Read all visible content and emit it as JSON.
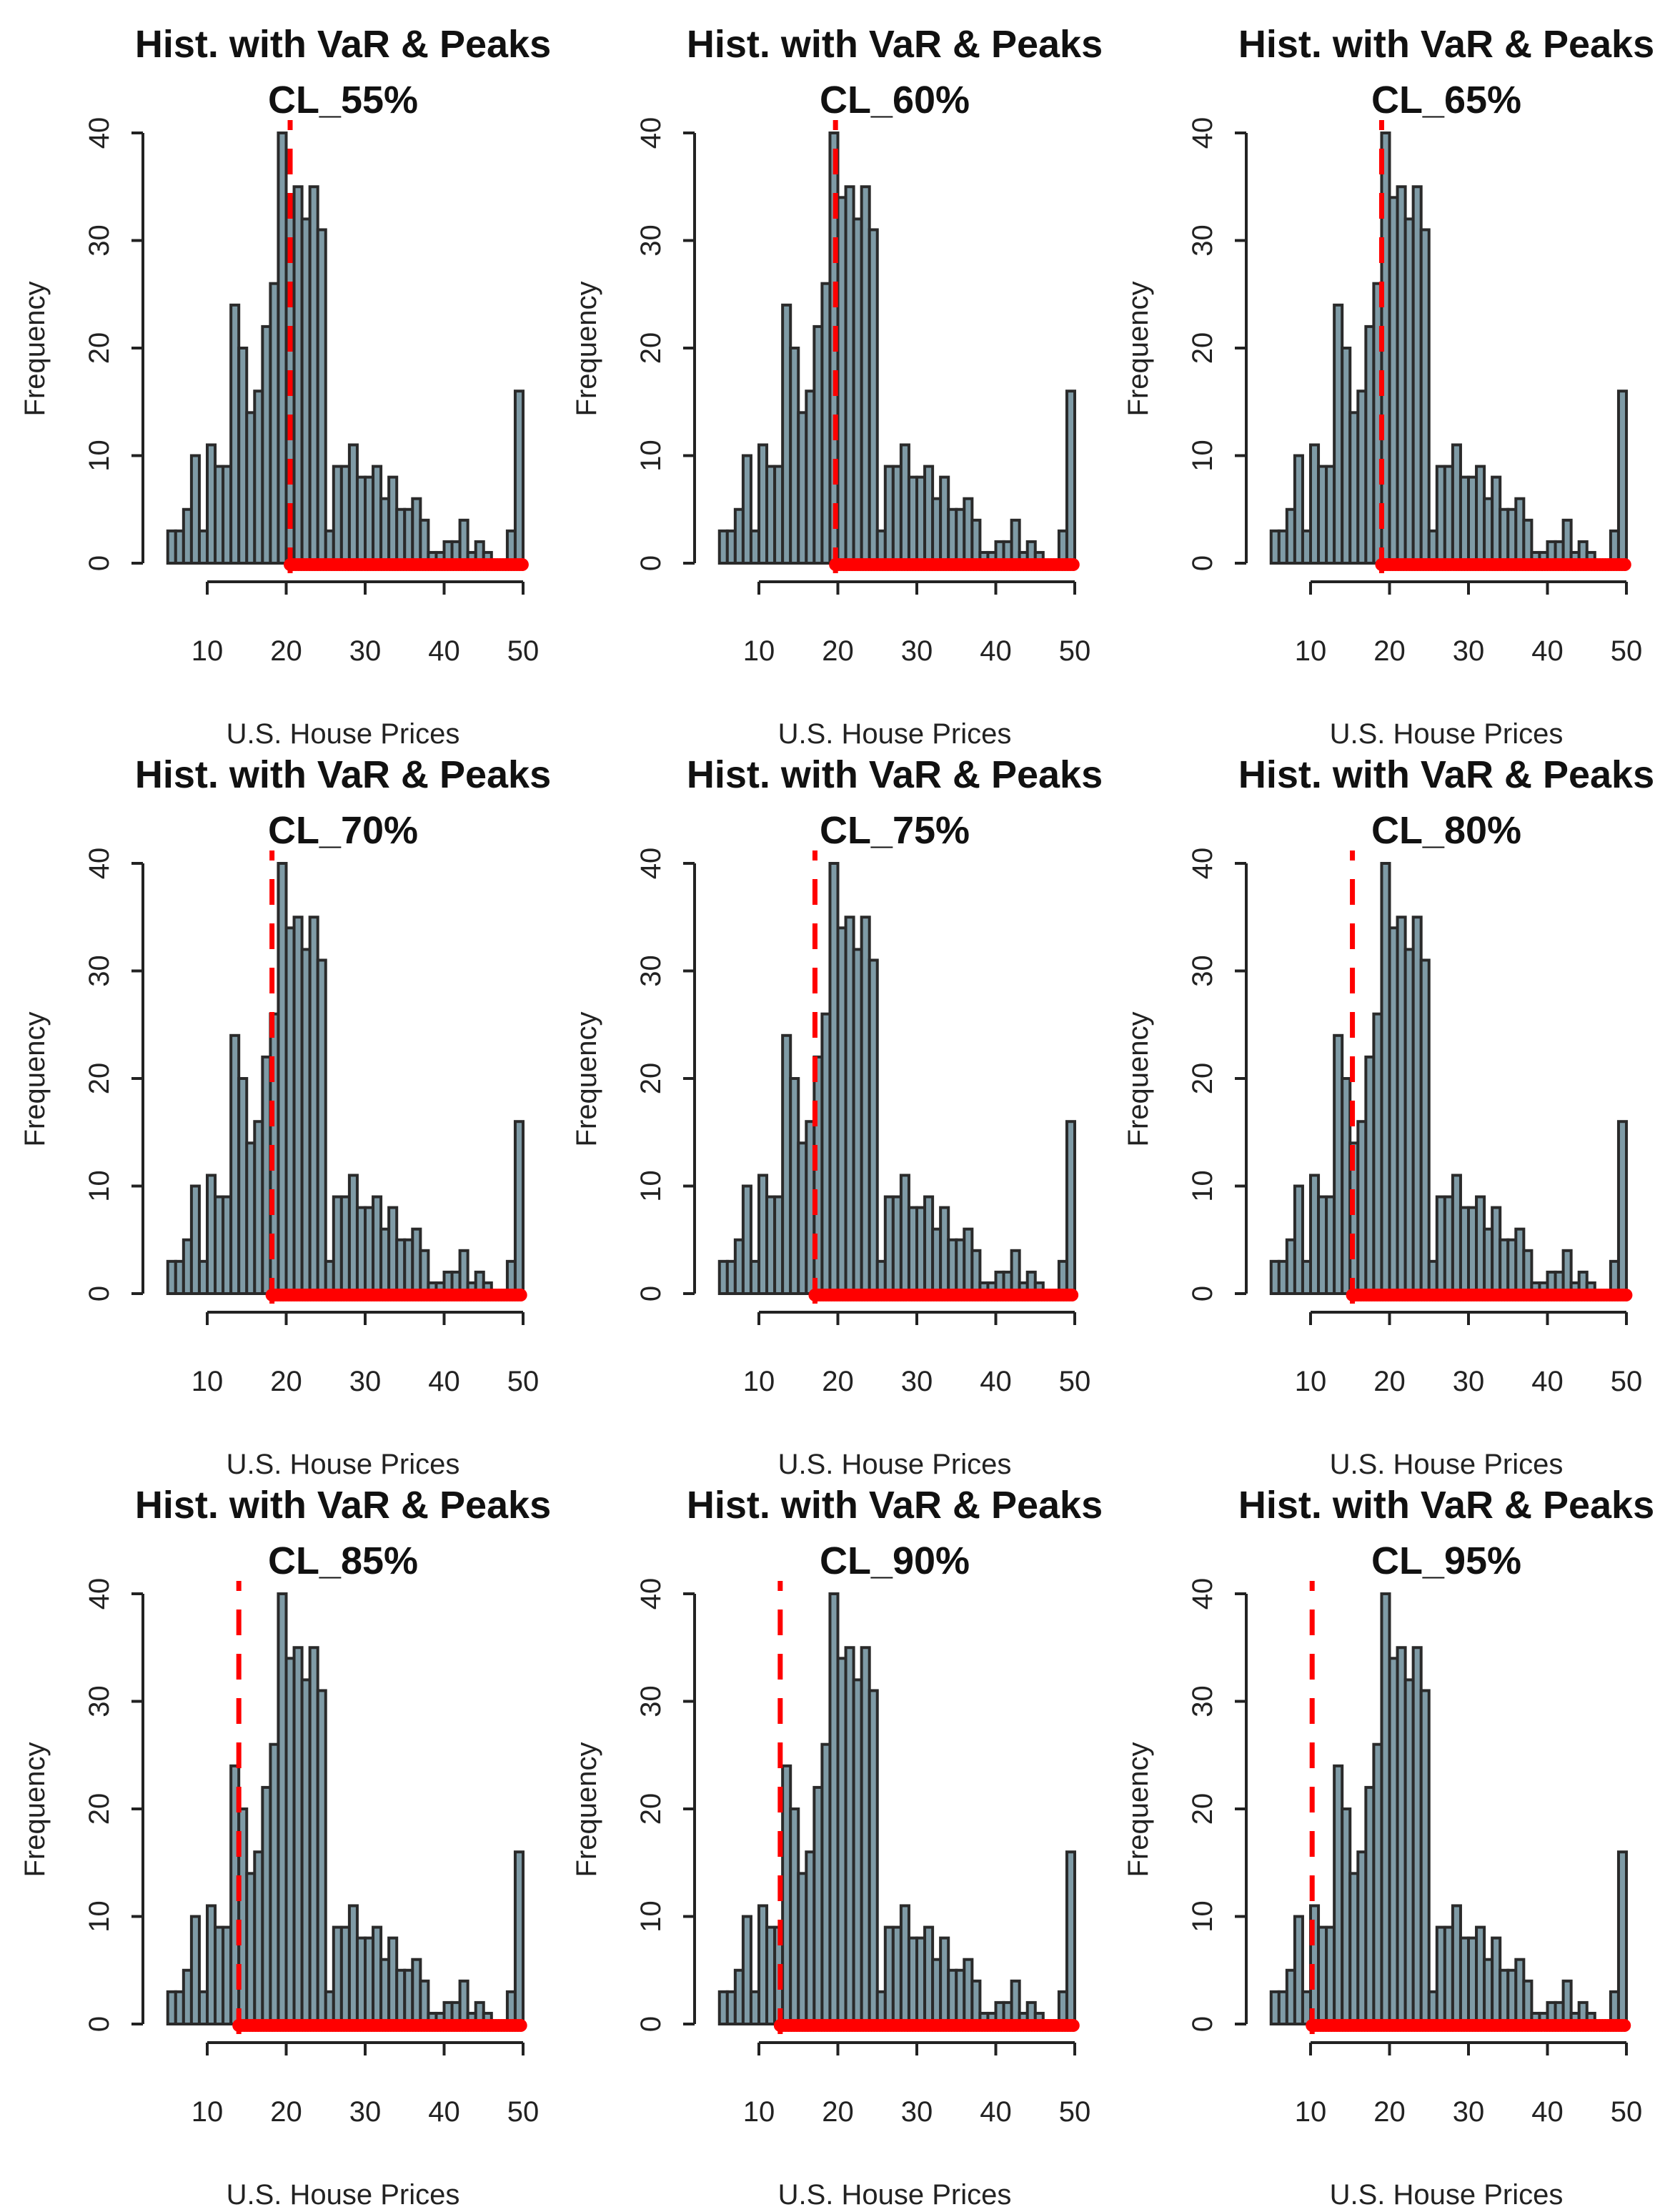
{
  "chart_data": [
    {
      "type": "bar",
      "title": "Hist. with VaR & Peaks",
      "subtitle": "CL_55%",
      "var": 20.5
    },
    {
      "type": "bar",
      "title": "Hist. with VaR & Peaks",
      "subtitle": "CL_60%",
      "var": 19.7
    },
    {
      "type": "bar",
      "title": "Hist. with VaR & Peaks",
      "subtitle": "CL_65%",
      "var": 19.0
    },
    {
      "type": "bar",
      "title": "Hist. with VaR & Peaks",
      "subtitle": "CL_70%",
      "var": 18.2
    },
    {
      "type": "bar",
      "title": "Hist. with VaR & Peaks",
      "subtitle": "CL_75%",
      "var": 17.1
    },
    {
      "type": "bar",
      "title": "Hist. with VaR & Peaks",
      "subtitle": "CL_80%",
      "var": 15.3
    },
    {
      "type": "bar",
      "title": "Hist. with VaR & Peaks",
      "subtitle": "CL_85%",
      "var": 14.0
    },
    {
      "type": "bar",
      "title": "Hist. with VaR & Peaks",
      "subtitle": "CL_90%",
      "var": 12.7
    },
    {
      "type": "bar",
      "title": "Hist. with VaR & Peaks",
      "subtitle": "CL_95%",
      "var": 10.2
    }
  ],
  "shared": {
    "xlabel": "U.S. House Prices",
    "ylabel": "Frequency",
    "xlim": [
      5,
      50
    ],
    "ylim": [
      0,
      40
    ],
    "bin_start": 5,
    "bin_width": 1,
    "counts": [
      3,
      3,
      5,
      10,
      3,
      11,
      9,
      9,
      24,
      20,
      14,
      16,
      22,
      26,
      40,
      34,
      35,
      32,
      35,
      31,
      3,
      9,
      9,
      11,
      8,
      8,
      9,
      6,
      8,
      5,
      5,
      6,
      4,
      1,
      1,
      2,
      2,
      4,
      1,
      2,
      1,
      0,
      0,
      3,
      16
    ],
    "xticks": [
      10,
      20,
      30,
      40,
      50
    ],
    "yticks": [
      0,
      10,
      20,
      30,
      40
    ],
    "colors": {
      "bar": "#7f9ba6",
      "outline": "#2a2a2a",
      "var_line": "#ff0000",
      "peaks": "#ff0000"
    }
  }
}
